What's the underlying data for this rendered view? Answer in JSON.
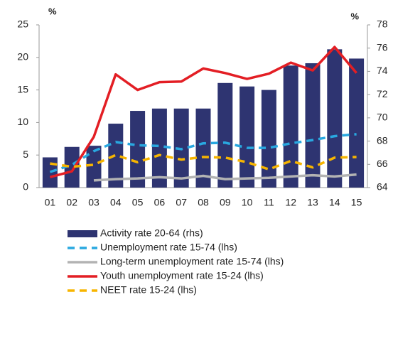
{
  "chart_data": {
    "type": "bar-line",
    "ylabel": "%",
    "y2label": "%",
    "categories": [
      "01",
      "02",
      "03",
      "04",
      "05",
      "06",
      "07",
      "08",
      "09",
      "10",
      "11",
      "12",
      "13",
      "14",
      "15"
    ],
    "ylim": [
      0,
      25
    ],
    "yticks": [
      0,
      5,
      10,
      15,
      20,
      25
    ],
    "y2lim": [
      64,
      78
    ],
    "y2ticks": [
      64,
      66,
      68,
      70,
      72,
      74,
      76,
      78
    ],
    "series": [
      {
        "name": "Activity rate 20-64 (rhs)",
        "type": "bar",
        "axis": "y2",
        "color": "#2e3471",
        "values": [
          66.6,
          67.5,
          67.6,
          69.5,
          70.6,
          70.8,
          70.8,
          70.8,
          73.0,
          72.7,
          72.4,
          74.5,
          74.7,
          75.9,
          75.1
        ]
      },
      {
        "name": "Unemployment rate 15-74 (lhs)",
        "type": "line",
        "style": "dashed",
        "color": "#29a8e0",
        "values": [
          2.4,
          3.5,
          5.6,
          7.0,
          6.5,
          6.4,
          5.9,
          6.8,
          6.9,
          6.1,
          6.1,
          6.8,
          7.3,
          7.9,
          8.2
        ]
      },
      {
        "name": "Long-term unemployment rate 15-74 (lhs)",
        "type": "line",
        "style": "solid",
        "color": "#b3b3b3",
        "values": [
          null,
          null,
          1.1,
          1.3,
          1.4,
          1.6,
          1.4,
          1.8,
          1.3,
          1.4,
          1.5,
          1.7,
          1.9,
          1.7,
          2.0
        ]
      },
      {
        "name": "Youth unemployment rate 15-24 (lhs)",
        "type": "line",
        "style": "solid",
        "color": "#e31e24",
        "values": [
          1.6,
          2.5,
          7.8,
          17.4,
          15.0,
          16.2,
          16.3,
          18.3,
          17.6,
          16.7,
          17.5,
          19.2,
          18.0,
          21.6,
          17.6
        ]
      },
      {
        "name": "NEET rate 15-24 (lhs)",
        "type": "line",
        "style": "dashed",
        "color": "#f7b500",
        "values": [
          3.7,
          3.2,
          3.5,
          5.0,
          3.9,
          5.0,
          4.3,
          4.7,
          4.6,
          3.9,
          2.8,
          4.1,
          3.1,
          4.6,
          4.7
        ]
      }
    ]
  }
}
